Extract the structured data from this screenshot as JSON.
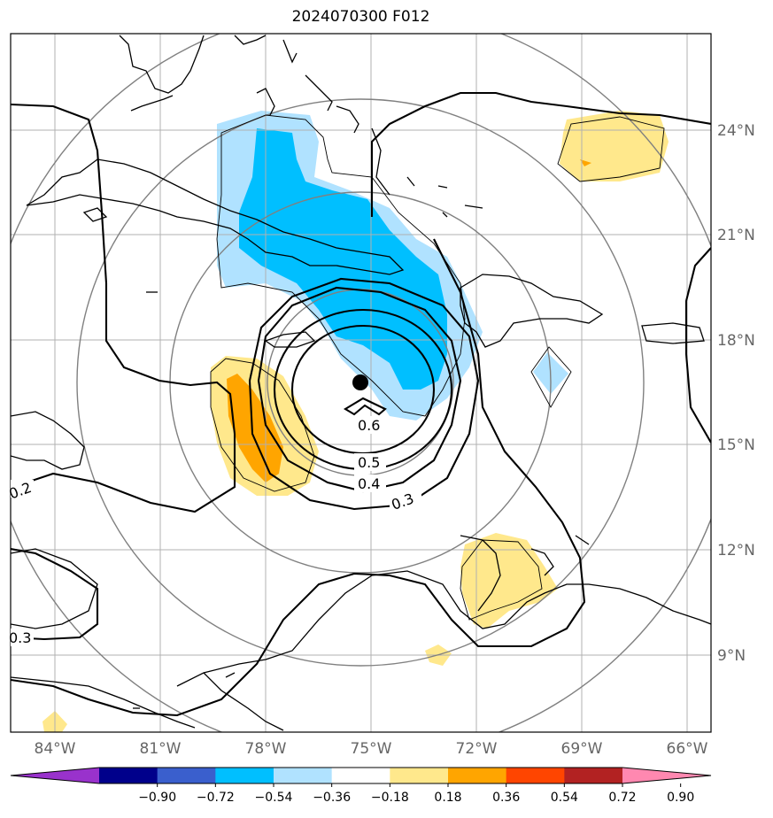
{
  "title": "2024070300 F012",
  "colors": {
    "coast": "#000000",
    "grid": "#b0b0b0",
    "range_rings": "#808080",
    "tick_labels": "#666666"
  },
  "lon_labels": [
    "84°W",
    "81°W",
    "78°W",
    "75°W",
    "72°W",
    "69°W",
    "66°W"
  ],
  "lat_labels": [
    "24°N",
    "21°N",
    "18°N",
    "15°N",
    "12°N",
    "9°N"
  ],
  "contour_labels": [
    "0.6",
    "0.5",
    "0.4",
    "0.3",
    "0.2",
    "0.3"
  ],
  "colorbar": {
    "ticks": [
      "−0.90",
      "−0.72",
      "−0.54",
      "−0.36",
      "−0.18",
      "0.18",
      "0.36",
      "0.54",
      "0.72",
      "0.90"
    ],
    "colors": [
      "#9932cc",
      "#00008b",
      "#3a5fcd",
      "#00bfff",
      "#b0e2ff",
      "#ffffff",
      "#ffe88c",
      "#ffa500",
      "#ff4500",
      "#b22222",
      "#ff88b0"
    ]
  },
  "center_marker": "storm-center"
}
